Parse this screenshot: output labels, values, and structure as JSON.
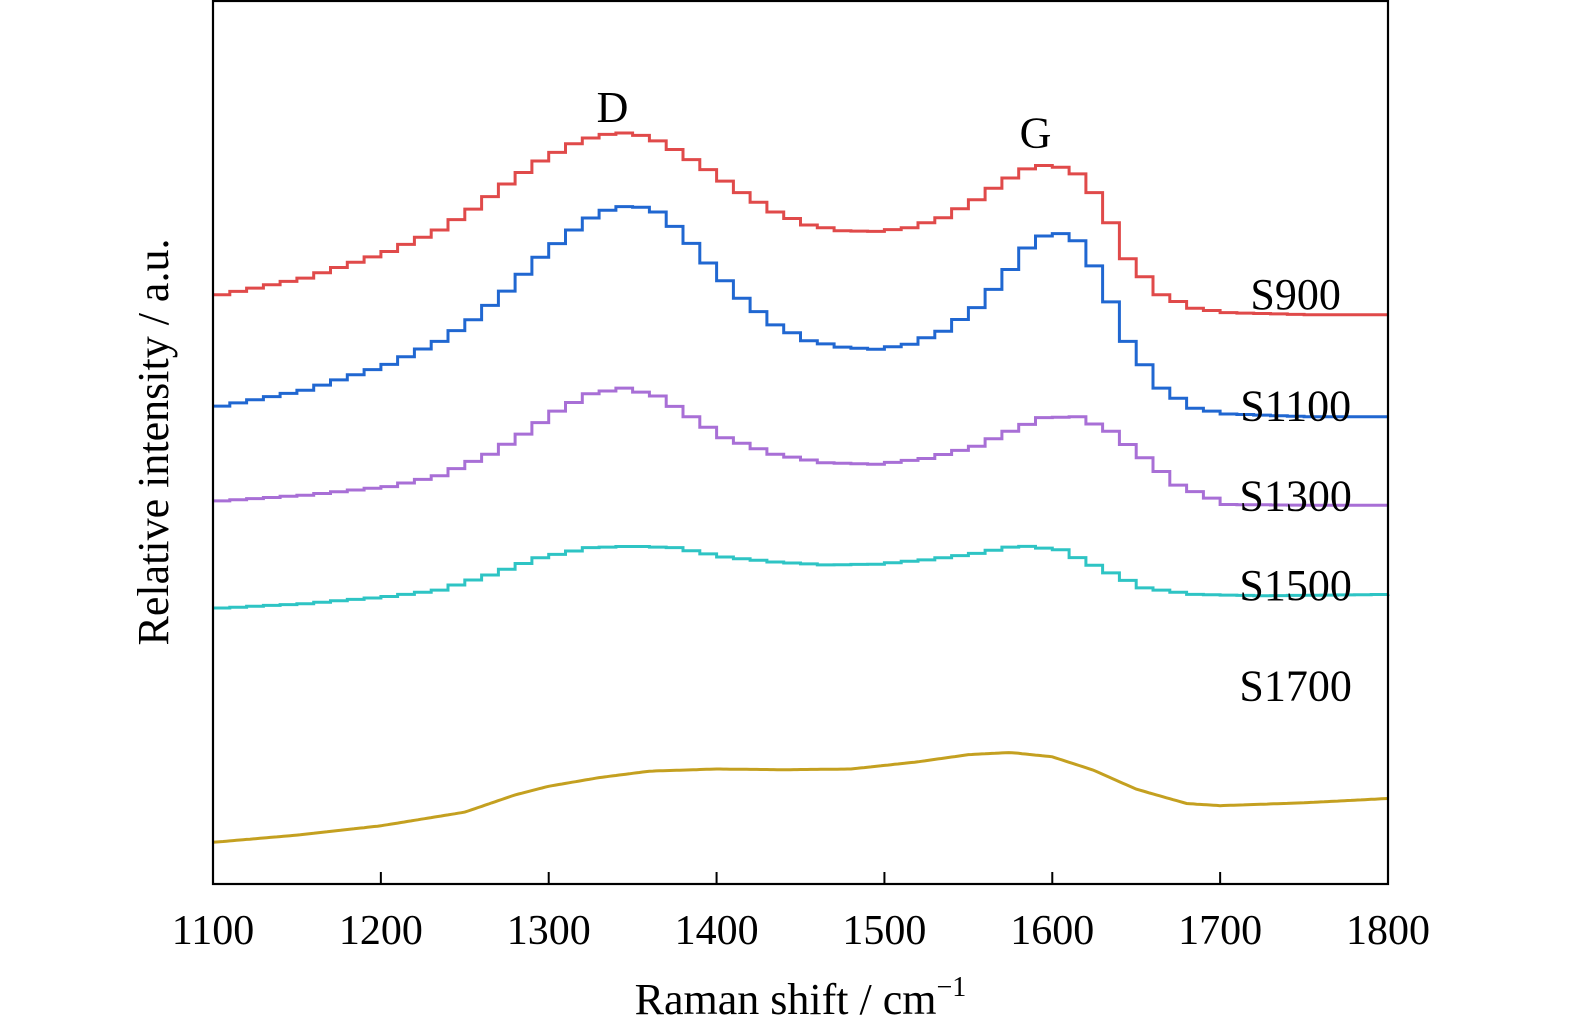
{
  "chart_data": {
    "type": "line",
    "xlabel": "Raman shift / cm",
    "xlabel_sup": "−1",
    "ylabel": "Relative intensity / a.u.",
    "xlim": [
      1100,
      1800
    ],
    "ylim": [
      0,
      12.3
    ],
    "x_ticks": [
      "1100",
      "1200",
      "1300",
      "1400",
      "1500",
      "1600",
      "1700",
      "1800"
    ],
    "y_ticks": [],
    "grid": false,
    "legend": "none",
    "annotations": [
      {
        "text": "D",
        "x": 1338,
        "y": 10.6
      },
      {
        "text": "G",
        "x": 1590,
        "y": 10.25
      }
    ],
    "series": [
      {
        "name": "S900",
        "color": "#e04a4a",
        "label_x": 1745,
        "label_y": 8.0,
        "x": [
          1100,
          1150,
          1200,
          1230,
          1250,
          1270,
          1290,
          1310,
          1325,
          1340,
          1355,
          1370,
          1390,
          1410,
          1430,
          1450,
          1470,
          1490,
          1510,
          1530,
          1550,
          1565,
          1580,
          1595,
          1610,
          1620,
          1630,
          1640,
          1660,
          1680,
          1700,
          1750,
          1800
        ],
        "values": [
          8.2,
          8.43,
          8.8,
          9.1,
          9.39,
          9.74,
          10.06,
          10.3,
          10.42,
          10.45,
          10.4,
          10.22,
          9.94,
          9.62,
          9.35,
          9.17,
          9.09,
          9.08,
          9.13,
          9.27,
          9.52,
          9.76,
          9.95,
          10.02,
          9.88,
          9.62,
          9.2,
          8.7,
          8.2,
          8.01,
          7.95,
          7.92,
          7.92
        ]
      },
      {
        "name": "S1100",
        "color": "#2067d1",
        "label_x": 1745,
        "label_y": 6.45,
        "x": [
          1100,
          1150,
          1200,
          1230,
          1250,
          1270,
          1290,
          1310,
          1325,
          1345,
          1360,
          1375,
          1390,
          1410,
          1430,
          1450,
          1470,
          1490,
          1510,
          1530,
          1550,
          1565,
          1580,
          1595,
          1610,
          1620,
          1630,
          1640,
          1660,
          1680,
          1700,
          1750,
          1800
        ],
        "values": [
          6.65,
          6.87,
          7.23,
          7.55,
          7.85,
          8.25,
          8.72,
          9.1,
          9.35,
          9.45,
          9.35,
          9.05,
          8.64,
          8.15,
          7.78,
          7.56,
          7.47,
          7.44,
          7.51,
          7.69,
          8.02,
          8.4,
          8.85,
          9.1,
          8.95,
          8.6,
          8.1,
          7.55,
          6.9,
          6.62,
          6.54,
          6.5,
          6.5
        ]
      },
      {
        "name": "S1300",
        "color": "#a86fd6",
        "label_x": 1745,
        "label_y": 5.2,
        "x": [
          1100,
          1150,
          1200,
          1230,
          1260,
          1280,
          1300,
          1320,
          1340,
          1360,
          1380,
          1400,
          1430,
          1460,
          1490,
          1520,
          1550,
          1570,
          1590,
          1610,
          1630,
          1650,
          1670,
          1700,
          1750,
          1800
        ],
        "values": [
          5.33,
          5.41,
          5.53,
          5.68,
          5.98,
          6.26,
          6.58,
          6.82,
          6.9,
          6.79,
          6.5,
          6.21,
          5.98,
          5.86,
          5.84,
          5.92,
          6.09,
          6.3,
          6.49,
          6.5,
          6.3,
          5.93,
          5.55,
          5.28,
          5.27,
          5.27
        ]
      },
      {
        "name": "S1500",
        "color": "#2ec4c4",
        "label_x": 1745,
        "label_y": 3.95,
        "x": [
          1100,
          1150,
          1200,
          1230,
          1260,
          1290,
          1320,
          1345,
          1370,
          1400,
          1430,
          1460,
          1490,
          1520,
          1550,
          1575,
          1600,
          1625,
          1650,
          1680,
          1720,
          1760,
          1800
        ],
        "values": [
          3.84,
          3.9,
          4.0,
          4.09,
          4.3,
          4.54,
          4.68,
          4.7,
          4.68,
          4.55,
          4.48,
          4.44,
          4.45,
          4.51,
          4.6,
          4.71,
          4.65,
          4.38,
          4.12,
          4.03,
          4.01,
          4.02,
          4.03
        ]
      },
      {
        "name": "S1700",
        "color": "#c4a020",
        "label_x": 1745,
        "label_y": 2.55,
        "x": [
          1100,
          1150,
          1200,
          1250,
          1280,
          1300,
          1330,
          1360,
          1400,
          1440,
          1480,
          1520,
          1550,
          1575,
          1600,
          1625,
          1650,
          1680,
          1700,
          1750,
          1800
        ],
        "values": [
          0.58,
          0.68,
          0.81,
          1.0,
          1.24,
          1.36,
          1.48,
          1.57,
          1.6,
          1.59,
          1.6,
          1.7,
          1.8,
          1.83,
          1.77,
          1.58,
          1.32,
          1.12,
          1.09,
          1.13,
          1.19
        ]
      }
    ]
  }
}
